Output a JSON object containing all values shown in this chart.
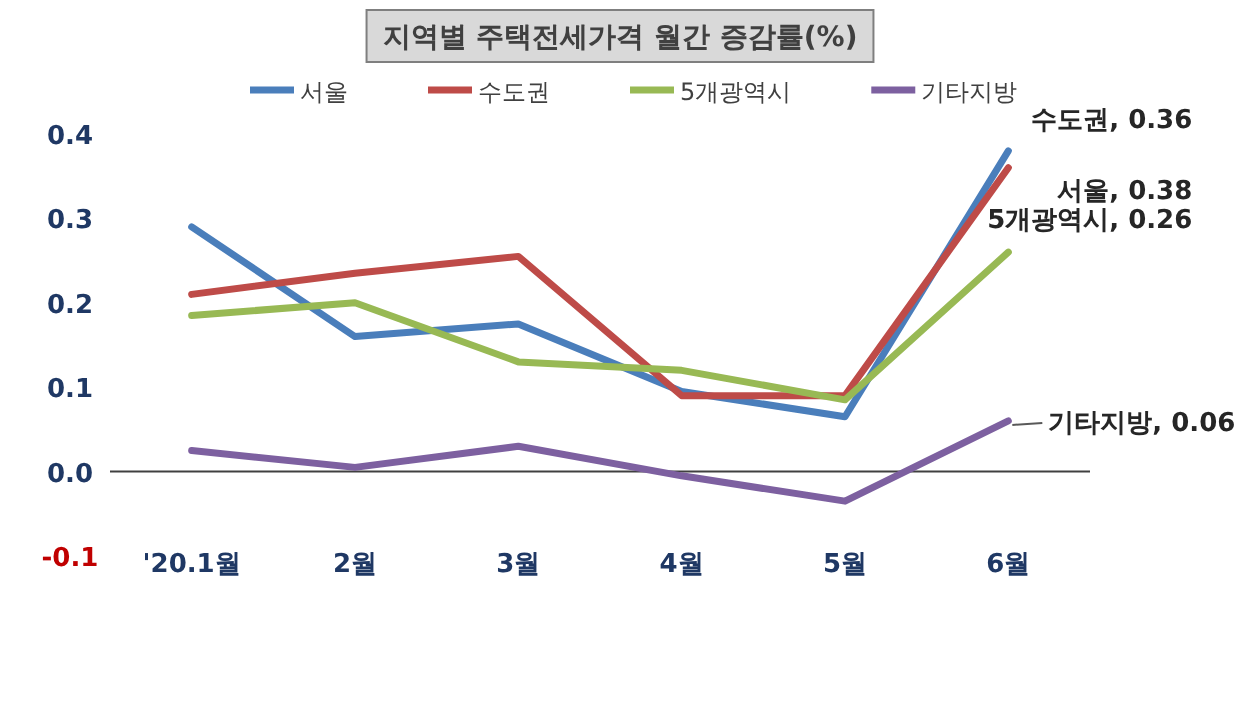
{
  "chart_data": {
    "type": "line",
    "title": "지역별 주택전세가격 월간 증감률(%)",
    "categories": [
      "'20.1월",
      "2월",
      "3월",
      "4월",
      "5월",
      "6월"
    ],
    "series": [
      {
        "name": "서울",
        "color": "#4a7ebb",
        "values": [
          0.29,
          0.16,
          0.175,
          0.095,
          0.065,
          0.38
        ]
      },
      {
        "name": "수도권",
        "color": "#be4b48",
        "values": [
          0.21,
          0.235,
          0.255,
          0.09,
          0.09,
          0.36
        ]
      },
      {
        "name": "5개광역시",
        "color": "#98b954",
        "values": [
          0.185,
          0.2,
          0.13,
          0.12,
          0.085,
          0.26
        ]
      },
      {
        "name": "기타지방",
        "color": "#7d60a0",
        "values": [
          0.025,
          0.005,
          0.03,
          -0.005,
          -0.035,
          0.06
        ]
      }
    ],
    "ylim": [
      -0.1,
      0.4
    ],
    "yticks": [
      {
        "value": -0.1,
        "label": "-0.1"
      },
      {
        "value": 0,
        "label": "0.0"
      },
      {
        "value": 0.1,
        "label": "0.1"
      },
      {
        "value": 0.2,
        "label": "0.2"
      },
      {
        "value": 0.3,
        "label": "0.3"
      },
      {
        "value": 0.4,
        "label": "0.4"
      }
    ],
    "legend": "top",
    "marker": "none",
    "line_style": "solid",
    "annotations": [
      {
        "text": "수도권, 0.36",
        "x": "6월",
        "y": 0.36
      },
      {
        "text": "서울, 0.38",
        "x": "6월",
        "y": 0.38
      },
      {
        "text": "5개광역시, 0.26",
        "x": "6월",
        "y": 0.26
      },
      {
        "text": "기타지방, 0.06",
        "x": "6월",
        "y": 0.06
      }
    ]
  }
}
